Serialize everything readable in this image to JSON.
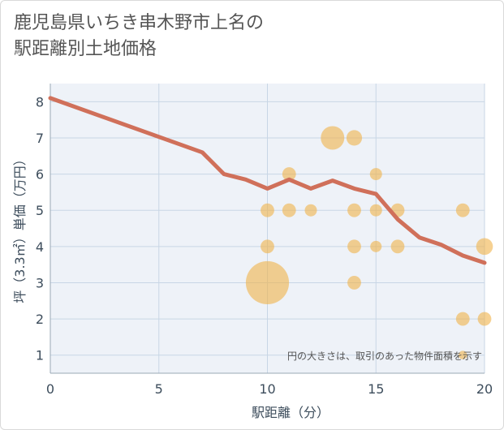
{
  "chart_data": {
    "type": "scatter",
    "title_line1": "鹿児島県いちき串木野市上名の",
    "title_line2": "駅距離別土地価格",
    "xlabel": "駅距離（分）",
    "ylabel": "坪（3.3㎡）単価（万円）",
    "xlim": [
      0,
      20
    ],
    "ylim": [
      0.5,
      8.5
    ],
    "x_ticks": [
      0,
      5,
      10,
      15,
      20
    ],
    "y_ticks": [
      1,
      2,
      3,
      4,
      5,
      6,
      7,
      8
    ],
    "grid": true,
    "note": "円の大きさは、取引のあった物件面積を示す",
    "colors": {
      "bubble": "#f0b34a",
      "line": "#d0705a",
      "grid": "#c8d6e5",
      "plot_bg": "#eef2f8"
    },
    "points": [
      {
        "x": 10,
        "y": 3,
        "size": 10
      },
      {
        "x": 10,
        "y": 5,
        "size": 1
      },
      {
        "x": 10,
        "y": 4,
        "size": 1
      },
      {
        "x": 11,
        "y": 6,
        "size": 1
      },
      {
        "x": 11,
        "y": 5,
        "size": 1
      },
      {
        "x": 12,
        "y": 5,
        "size": 0.8
      },
      {
        "x": 13,
        "y": 7,
        "size": 3
      },
      {
        "x": 14,
        "y": 7,
        "size": 1.3
      },
      {
        "x": 14,
        "y": 5,
        "size": 1
      },
      {
        "x": 14,
        "y": 4,
        "size": 1
      },
      {
        "x": 14,
        "y": 3,
        "size": 1
      },
      {
        "x": 15,
        "y": 6,
        "size": 0.8
      },
      {
        "x": 15,
        "y": 5,
        "size": 0.8
      },
      {
        "x": 15,
        "y": 4,
        "size": 0.7
      },
      {
        "x": 16,
        "y": 5,
        "size": 1
      },
      {
        "x": 16,
        "y": 4,
        "size": 1
      },
      {
        "x": 19,
        "y": 5,
        "size": 1
      },
      {
        "x": 19,
        "y": 2,
        "size": 1
      },
      {
        "x": 19,
        "y": 1,
        "size": 0.4
      },
      {
        "x": 20,
        "y": 4,
        "size": 1.5
      },
      {
        "x": 20,
        "y": 2,
        "size": 1
      }
    ],
    "trend": [
      {
        "x": 0,
        "y": 8.1
      },
      {
        "x": 7,
        "y": 6.6
      },
      {
        "x": 8,
        "y": 6.0
      },
      {
        "x": 9,
        "y": 5.85
      },
      {
        "x": 10,
        "y": 5.6
      },
      {
        "x": 11,
        "y": 5.85
      },
      {
        "x": 12,
        "y": 5.6
      },
      {
        "x": 13,
        "y": 5.82
      },
      {
        "x": 14,
        "y": 5.6
      },
      {
        "x": 15,
        "y": 5.45
      },
      {
        "x": 16,
        "y": 4.75
      },
      {
        "x": 17,
        "y": 4.25
      },
      {
        "x": 18,
        "y": 4.05
      },
      {
        "x": 19,
        "y": 3.75
      },
      {
        "x": 20,
        "y": 3.55
      }
    ]
  }
}
